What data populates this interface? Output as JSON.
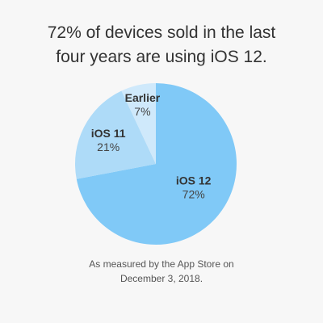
{
  "header": {
    "title_line1": "72% of devices sold in the last",
    "title_line2": "four years are using iOS 12."
  },
  "chart_data": {
    "type": "pie",
    "title": "72% of devices sold in the last four years are using iOS 12.",
    "slices": [
      {
        "label": "iOS 12",
        "value": 72,
        "value_label": "72%",
        "color": "#80c9f7"
      },
      {
        "label": "iOS 11",
        "value": 21,
        "value_label": "21%",
        "color": "#aedbf8"
      },
      {
        "label": "Earlier",
        "value": 7,
        "value_label": "7%",
        "color": "#cfe9fb"
      }
    ],
    "start": "12 o'clock",
    "direction": "clockwise",
    "legend": "none"
  },
  "footnote": {
    "line1": "As measured by the App Store on",
    "line2": "December 3, 2018."
  }
}
